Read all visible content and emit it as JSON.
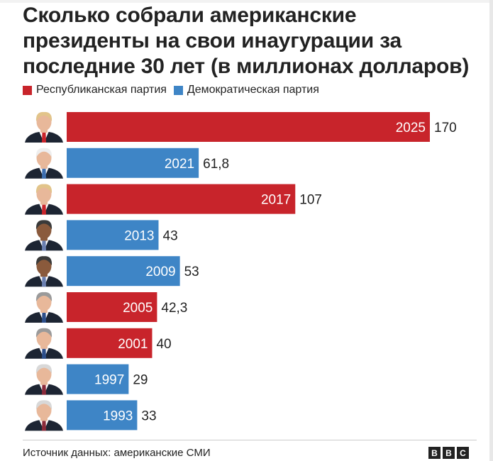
{
  "title": "Сколько собрали американские президенты на свои инаугурации за последние 30 лет (в миллионах долларов)",
  "legend": [
    {
      "label": "Республиканская партия",
      "color": "#c8242b"
    },
    {
      "label": "Демократическая партия",
      "color": "#3e85c6"
    }
  ],
  "source": "Источник данных: американские СМИ",
  "logo": {
    "letters": [
      "B",
      "B",
      "C"
    ]
  },
  "chart_data": {
    "type": "bar",
    "orientation": "horizontal",
    "categories": [
      "2025",
      "2021",
      "2017",
      "2013",
      "2009",
      "2005",
      "2001",
      "1997",
      "1993"
    ],
    "values": [
      170,
      61.8,
      107,
      43,
      53,
      42.3,
      40,
      29,
      33
    ],
    "value_labels": [
      "170",
      "61,8",
      "107",
      "43",
      "53",
      "42,3",
      "40",
      "29",
      "33"
    ],
    "party": [
      "republican",
      "democratic",
      "republican",
      "democratic",
      "democratic",
      "republican",
      "republican",
      "democratic",
      "democratic"
    ],
    "presidents": [
      "trump",
      "biden",
      "trump",
      "obama",
      "obama",
      "bush",
      "bush",
      "clinton",
      "clinton"
    ],
    "xlim": [
      0,
      170
    ],
    "colors": {
      "republican": "#c8242b",
      "democratic": "#3e85c6"
    },
    "title": "Сколько собрали американские президенты на свои инаугурации за последние 30 лет (в миллионах долларов)"
  }
}
